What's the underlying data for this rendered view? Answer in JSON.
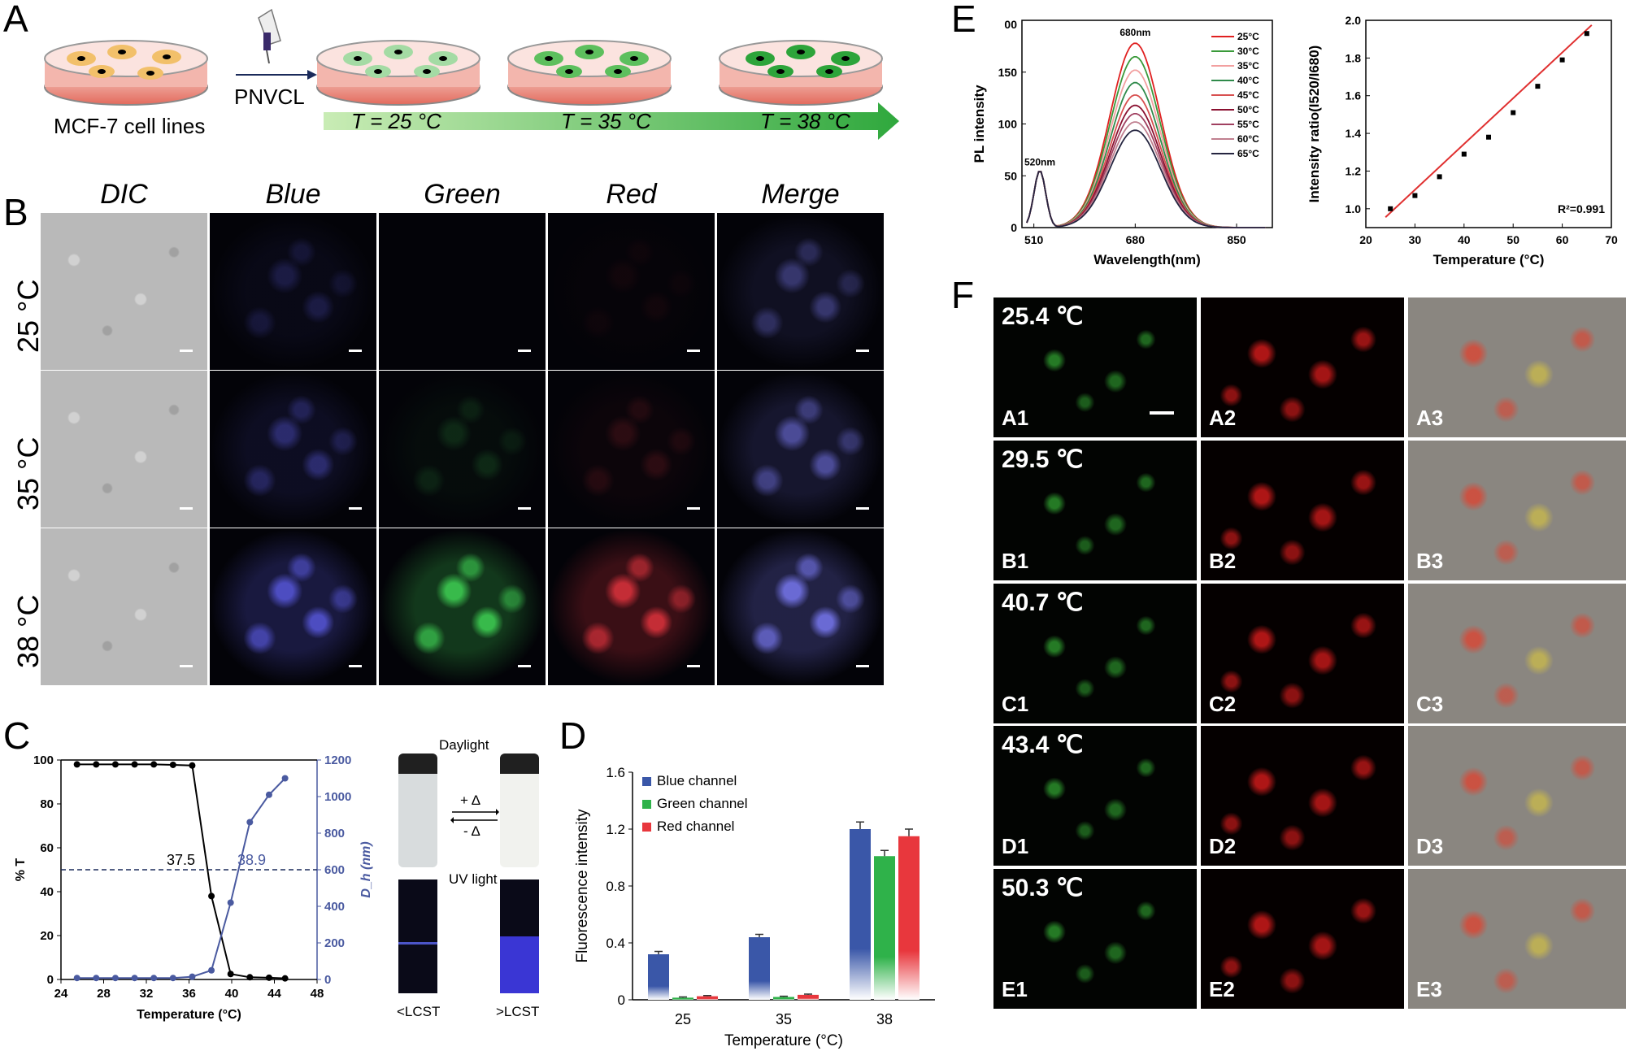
{
  "panels": {
    "A": "A",
    "B": "B",
    "C": "C",
    "D": "D",
    "E": "E",
    "F": "F"
  },
  "panel_a": {
    "cell_line_label": "MCF-7 cell lines",
    "reagent_label": "PNVCL",
    "temps": [
      "T = 25 °C",
      "T = 35 °C",
      "T = 38 °C"
    ]
  },
  "panel_b": {
    "columns": [
      "DIC",
      "Blue",
      "Green",
      "Red",
      "Merge"
    ],
    "rows": [
      "25 °C",
      "35 °C",
      "38 °C"
    ]
  },
  "panel_c": {
    "photo_labels": {
      "daylight": "Daylight",
      "uv": "UV light",
      "plus": "+ Δ",
      "minus": "- Δ",
      "below": "<LCST",
      "above": ">LCST"
    }
  },
  "panel_f": {
    "temps": [
      "25.4 ℃",
      "29.5 ℃",
      "40.7 ℃",
      "43.4 ℃",
      "50.3 ℃"
    ],
    "ids": [
      [
        "A1",
        "A2",
        "A3"
      ],
      [
        "B1",
        "B2",
        "B3"
      ],
      [
        "C1",
        "C2",
        "C3"
      ],
      [
        "D1",
        "D2",
        "D3"
      ],
      [
        "E1",
        "E2",
        "E3"
      ]
    ]
  },
  "chart_data": [
    {
      "id": "C",
      "type": "line",
      "xlabel": "Temperature (°C)",
      "ylabel": "% T",
      "y2label": "D_h (nm)",
      "xlim": [
        24,
        48
      ],
      "ylim": [
        0,
        100
      ],
      "y2lim": [
        0,
        1200
      ],
      "xticks": [
        24,
        28,
        32,
        36,
        40,
        44,
        48
      ],
      "yticks": [
        0,
        20,
        40,
        60,
        80,
        100
      ],
      "y2ticks": [
        0,
        200,
        400,
        600,
        800,
        1000,
        1200
      ],
      "annotations": [
        "37.5",
        "38.9"
      ],
      "reference_line_y": 50,
      "series": [
        {
          "axis": "left",
          "color": "#000000",
          "x": [
            25.5,
            27.3,
            29.1,
            30.9,
            32.7,
            34.5,
            36.3,
            38.1,
            39.9,
            41.7,
            43.5,
            45.0
          ],
          "y": [
            98,
            98,
            98,
            98,
            98,
            97.8,
            97.5,
            38,
            2.5,
            1,
            0.8,
            0.5
          ]
        },
        {
          "axis": "right",
          "color": "#4a5aa0",
          "x": [
            25.5,
            27.3,
            29.1,
            30.9,
            32.7,
            34.5,
            36.3,
            38.1,
            39.9,
            41.7,
            43.5,
            45.0
          ],
          "y": [
            8,
            8,
            8,
            8,
            8,
            8,
            15,
            50,
            420,
            860,
            1010,
            1100
          ]
        }
      ]
    },
    {
      "id": "D",
      "type": "bar",
      "xlabel": "Temperature (°C)",
      "ylabel": "Fluorescence intensity",
      "categories": [
        "25",
        "35",
        "38"
      ],
      "ylim": [
        0,
        1.6
      ],
      "yticks": [
        0,
        0.4,
        0.8,
        1.2,
        1.6
      ],
      "ytick_labels": [
        "0",
        "0.4",
        "0.8",
        "1.2",
        "1.6"
      ],
      "legend_position": "top-left",
      "series": [
        {
          "name": "Blue channel",
          "color": "#3a57a8",
          "values": [
            0.32,
            0.44,
            1.2
          ],
          "errors": [
            0.02,
            0.02,
            0.05
          ]
        },
        {
          "name": "Green channel",
          "color": "#2fb24a",
          "values": [
            0.015,
            0.02,
            1.01
          ],
          "errors": [
            0.005,
            0.005,
            0.04
          ]
        },
        {
          "name": "Red channel",
          "color": "#e8373d",
          "values": [
            0.025,
            0.035,
            1.15
          ],
          "errors": [
            0.005,
            0.005,
            0.05
          ]
        }
      ]
    },
    {
      "id": "E-left",
      "type": "line",
      "xlabel": "Wavelength(nm)",
      "ylabel": "PL intensity",
      "xticks": [
        510,
        680,
        850
      ],
      "yticks": [
        0,
        50,
        100,
        150
      ],
      "y_top_label": "00",
      "xlim": [
        490,
        910
      ],
      "ylim": [
        0,
        200
      ],
      "annotations": [
        "520nm",
        "680nm"
      ],
      "legend_position": "top-right",
      "series": [
        {
          "name": "25°C",
          "color": "#e02020",
          "peak": 178
        },
        {
          "name": "30°C",
          "color": "#3a9a3a",
          "peak": 165
        },
        {
          "name": "35°C",
          "color": "#f2a0a0",
          "peak": 152
        },
        {
          "name": "40°C",
          "color": "#2f8a4a",
          "peak": 140
        },
        {
          "name": "45°C",
          "color": "#d85050",
          "peak": 128
        },
        {
          "name": "50°C",
          "color": "#8a1030",
          "peak": 118
        },
        {
          "name": "55°C",
          "color": "#a04060",
          "peak": 110
        },
        {
          "name": "60°C",
          "color": "#c08090",
          "peak": 102
        },
        {
          "name": "65°C",
          "color": "#252540",
          "peak": 94
        }
      ]
    },
    {
      "id": "E-right",
      "type": "scatter",
      "xlabel": "Temperature (°C)",
      "ylabel": "Intensity ratio(I520/I680)",
      "xlim": [
        20,
        70
      ],
      "ylim": [
        0.9,
        2.0
      ],
      "xticks": [
        20,
        30,
        40,
        50,
        60,
        70
      ],
      "xtick_labels": [
        "20",
        "30",
        "40",
        "50",
        "60",
        "70"
      ],
      "yticks": [
        1.0,
        1.2,
        1.4,
        1.6,
        1.8,
        2.0
      ],
      "ytick_labels": [
        "1.0",
        "1.2",
        "1.4",
        "1.6",
        "1.8",
        "2.0"
      ],
      "annotation": "R²=0.991",
      "x": [
        25,
        30,
        35,
        40,
        45,
        50,
        55,
        60,
        65
      ],
      "y": [
        1.0,
        1.07,
        1.17,
        1.29,
        1.38,
        1.51,
        1.65,
        1.79,
        1.93
      ],
      "fit": {
        "x": [
          24,
          66
        ],
        "y": [
          0.955,
          1.975
        ],
        "color": "#e03030"
      }
    }
  ]
}
